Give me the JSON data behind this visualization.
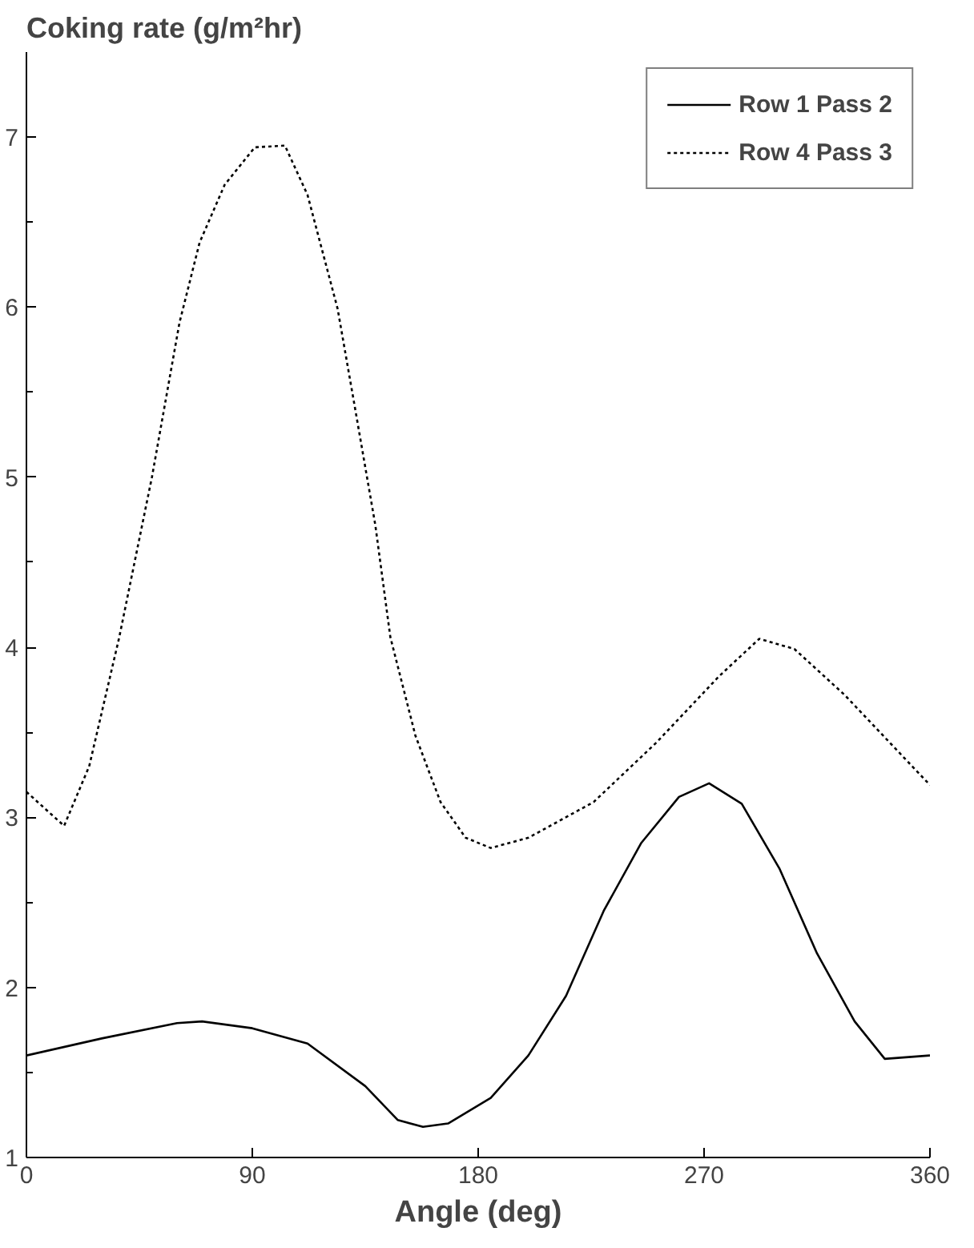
{
  "chart_data": {
    "type": "line",
    "title": "Coking rate (g/m²hr)",
    "xlabel": "Angle (deg)",
    "xlim": [
      0,
      360
    ],
    "xticks": [
      0,
      90,
      180,
      270,
      360
    ],
    "ylim": [
      1,
      7.5
    ],
    "yticks": [
      1,
      {
        "value": 1.5,
        "label": null
      },
      2,
      {
        "value": 2.5,
        "label": null
      },
      3,
      {
        "value": 3.5,
        "label": null
      },
      4,
      {
        "value": 4.5,
        "label": null
      },
      5,
      {
        "value": 5.5,
        "label": null
      },
      6,
      {
        "value": 6.5,
        "label": null
      },
      7
    ],
    "grid": false,
    "legend": "top right",
    "marker": "none",
    "series": [
      {
        "name": "Row 1 Pass 2",
        "color": "#000000",
        "line_style": "solid",
        "x": [
          0,
          30,
          60,
          70,
          90,
          112,
          135,
          148,
          158,
          168,
          185,
          200,
          215,
          230,
          245,
          260,
          272,
          285,
          300,
          315,
          330,
          342,
          360
        ],
        "values": [
          1.6,
          1.7,
          1.79,
          1.8,
          1.76,
          1.67,
          1.42,
          1.22,
          1.18,
          1.2,
          1.35,
          1.6,
          1.95,
          2.45,
          2.85,
          3.12,
          3.2,
          3.08,
          2.7,
          2.2,
          1.8,
          1.58,
          1.6
        ]
      },
      {
        "name": "Row 4 Pass 3",
        "color": "#000000",
        "line_style": "dotted",
        "x": [
          0,
          15,
          25,
          37,
          50,
          61,
          69,
          79,
          91,
          103,
          112,
          124,
          131,
          139,
          145,
          155,
          165,
          175,
          185,
          200,
          226,
          251,
          276,
          292,
          306,
          326,
          360
        ],
        "values": [
          3.15,
          2.95,
          3.3,
          4.06,
          5.0,
          5.91,
          6.38,
          6.72,
          6.94,
          6.95,
          6.66,
          5.99,
          5.4,
          4.72,
          4.06,
          3.48,
          3.09,
          2.88,
          2.82,
          2.88,
          3.09,
          3.44,
          3.83,
          4.05,
          3.99,
          3.72,
          3.19
        ]
      }
    ]
  }
}
